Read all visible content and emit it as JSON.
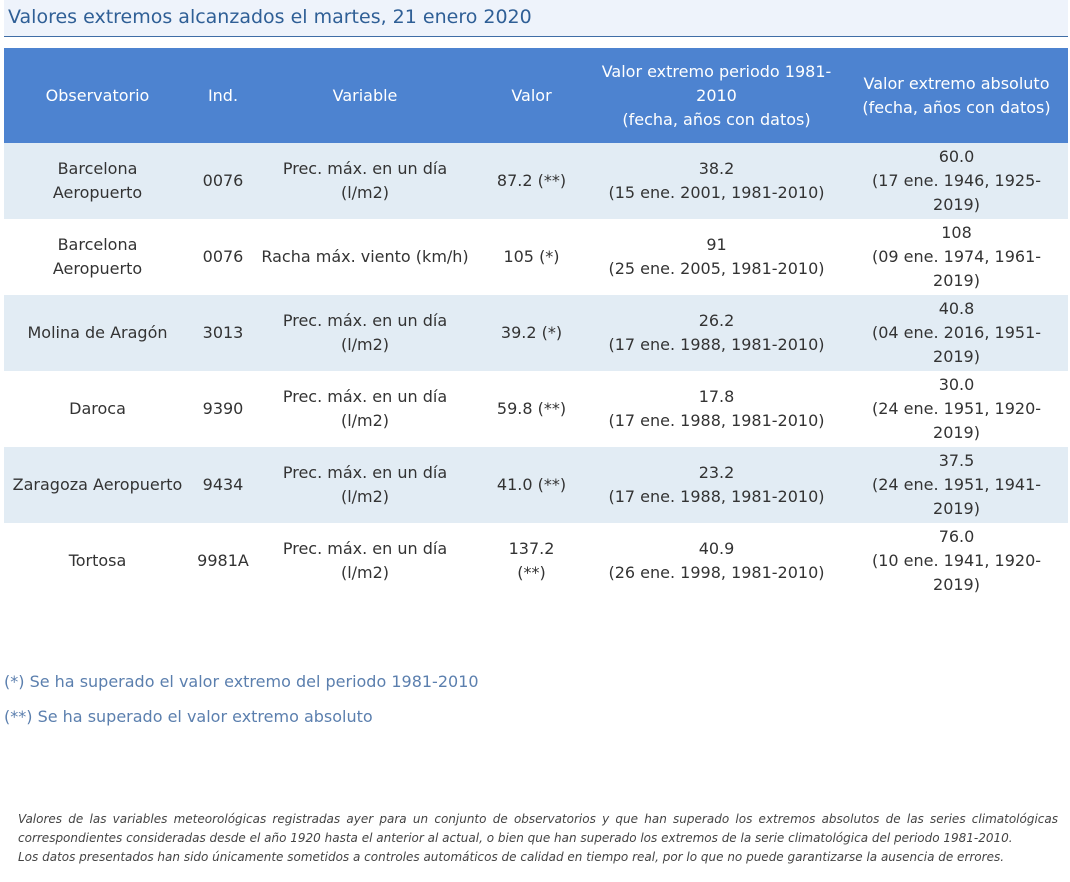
{
  "title": "Valores extremos alcanzados el martes, 21 enero 2020",
  "table": {
    "headers": {
      "observatorio": "Observatorio",
      "ind": "Ind.",
      "variable": "Variable",
      "valor": "Valor",
      "periodo_line1": "Valor extremo periodo 1981-",
      "periodo_line2": "2010",
      "periodo_line3": "(fecha, años con datos)",
      "absoluto_line1": "Valor extremo absoluto",
      "absoluto_line2": "(fecha, años con datos)"
    },
    "rows": [
      {
        "obs1": "Barcelona",
        "obs2": "Aeropuerto",
        "ind": "0076",
        "var1": "Prec. máx. en un día",
        "var2": "(l/m2)",
        "val1": "87.2 (**)",
        "val2": "",
        "per1": "38.2",
        "per2": "(15 ene. 2001, 1981-2010)",
        "abs1": "60.0",
        "abs2": "(17 ene. 1946, 1925-",
        "abs3": "2019)"
      },
      {
        "obs1": "Barcelona",
        "obs2": "Aeropuerto",
        "ind": "0076",
        "var1": "Racha máx. viento (km/h)",
        "var2": "",
        "val1": "105 (*)",
        "val2": "",
        "per1": "91",
        "per2": "(25 ene. 2005, 1981-2010)",
        "abs1": "108",
        "abs2": "(09 ene. 1974, 1961-",
        "abs3": "2019)"
      },
      {
        "obs1": "Molina de Aragón",
        "obs2": "",
        "ind": "3013",
        "var1": "Prec. máx. en un día",
        "var2": "(l/m2)",
        "val1": "39.2 (*)",
        "val2": "",
        "per1": "26.2",
        "per2": "(17 ene. 1988, 1981-2010)",
        "abs1": "40.8",
        "abs2": "(04 ene. 2016, 1951-",
        "abs3": "2019)"
      },
      {
        "obs1": "Daroca",
        "obs2": "",
        "ind": "9390",
        "var1": "Prec. máx. en un día",
        "var2": "(l/m2)",
        "val1": "59.8 (**)",
        "val2": "",
        "per1": "17.8",
        "per2": "(17 ene. 1988, 1981-2010)",
        "abs1": "30.0",
        "abs2": "(24 ene. 1951, 1920-",
        "abs3": "2019)"
      },
      {
        "obs1": "Zaragoza Aeropuerto",
        "obs2": "",
        "ind": "9434",
        "var1": "Prec. máx. en un día",
        "var2": "(l/m2)",
        "val1": "41.0 (**)",
        "val2": "",
        "per1": "23.2",
        "per2": "(17 ene. 1988, 1981-2010)",
        "abs1": "37.5",
        "abs2": "(24 ene. 1951, 1941-",
        "abs3": "2019)"
      },
      {
        "obs1": "Tortosa",
        "obs2": "",
        "ind": "9981A",
        "var1": "Prec. máx. en un día",
        "var2": "(l/m2)",
        "val1": "137.2",
        "val2": "(**)",
        "per1": "40.9",
        "per2": "(26 ene. 1998, 1981-2010)",
        "abs1": "76.0",
        "abs2": "(10 ene. 1941, 1920-",
        "abs3": "2019)"
      }
    ]
  },
  "notes": [
    "(*) Se ha superado el valor extremo del periodo 1981-2010",
    "(**) Se ha superado el valor extremo absoluto"
  ],
  "footer": {
    "line1": "Valores de las variables meteorológicas registradas ayer para un conjunto de observatorios y que han superado los extremos absolutos de las series climatológicas",
    "line2": "correspondientes consideradas desde el año 1920 hasta el anterior al actual, o bien que han superado los extremos de la serie climatológica del periodo 1981-2010.",
    "line3": "Los datos presentados han sido únicamente sometidos a controles automáticos de calidad en tiempo real, por lo que no puede garantizarse la ausencia de errores."
  }
}
